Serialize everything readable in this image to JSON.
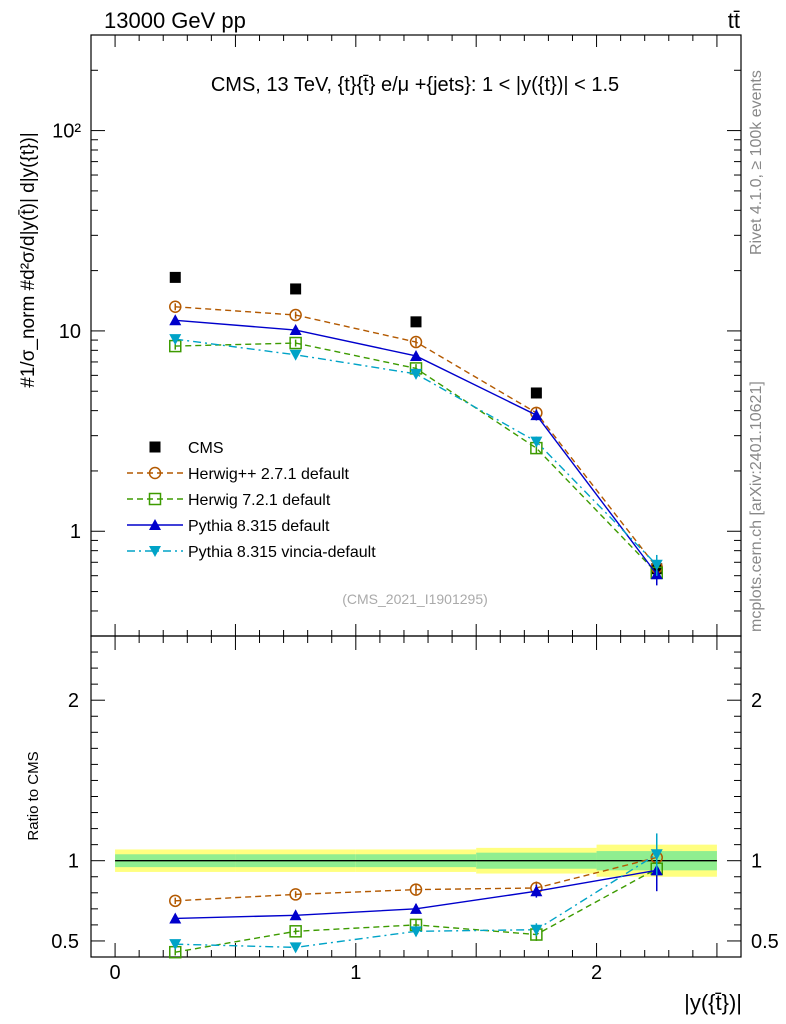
{
  "header": {
    "left_label": "13000 GeV pp",
    "right_label": "tt̄"
  },
  "side_labels": {
    "rivet": "Rivet 4.1.0, ≥ 100k events",
    "site": "mcplots.cern.ch [arXiv:2401.10621]"
  },
  "chart_data": [
    {
      "type": "line",
      "panel": "main",
      "title": "CMS, 13 TeV, {t}{t̄} e/μ +{jets}: 1 < |y({t})| < 1.5",
      "ylabel": "#1/σ_norm #d²σ/d|y(t̄)| d|y({t})|",
      "xlabel": "|y({t̄})|",
      "yscale": "log",
      "ylim": [
        0.3,
        300
      ],
      "xlim": [
        -0.1,
        2.6
      ],
      "yticks": [
        1,
        10,
        100
      ],
      "ytick_labels": [
        "1",
        "10",
        "10²"
      ],
      "watermark": "(CMS_2021_I1901295)",
      "legend_position": "lower-left",
      "x": [
        0.25,
        0.75,
        1.25,
        1.75,
        2.25
      ],
      "series": [
        {
          "name": "CMS",
          "color": "#000000",
          "marker": "square-filled",
          "values": [
            18.5,
            16.2,
            11.1,
            4.9,
            0.65
          ]
        },
        {
          "name": "Herwig++ 2.7.1 default",
          "color": "#b35900",
          "marker": "circle-open",
          "dash": "dashed",
          "values": [
            13.2,
            12.0,
            8.8,
            3.9,
            0.66
          ]
        },
        {
          "name": "Herwig 7.2.1 default",
          "color": "#3d9b00",
          "marker": "square-open",
          "dash": "dashed",
          "values": [
            8.4,
            8.7,
            6.5,
            2.6,
            0.62
          ]
        },
        {
          "name": "Pythia 8.315 default",
          "color": "#0000cc",
          "marker": "triangle-up",
          "dash": "solid",
          "values": [
            11.3,
            10.1,
            7.5,
            3.8,
            0.61
          ]
        },
        {
          "name": "Pythia 8.315 vincia-default",
          "color": "#00a3c7",
          "marker": "triangle-down",
          "dash": "dashdot",
          "values": [
            9.1,
            7.6,
            6.1,
            2.8,
            0.68
          ]
        }
      ]
    },
    {
      "type": "line",
      "panel": "ratio",
      "ylabel": "Ratio to CMS",
      "xlabel": "|y({t̄})|",
      "ylim": [
        0.4,
        2.4
      ],
      "xlim": [
        -0.1,
        2.6
      ],
      "yticks": [
        0.5,
        1,
        2
      ],
      "ytick_labels": [
        "0.5",
        "1",
        "2"
      ],
      "xticks": [
        0,
        1,
        2
      ],
      "xtick_labels": [
        "0",
        "1",
        "2"
      ],
      "x": [
        0.25,
        0.75,
        1.25,
        1.75,
        2.25
      ],
      "bands": {
        "edges": [
          0,
          0.5,
          1,
          1.5,
          2,
          2.5
        ],
        "inner": [
          [
            0.96,
            1.04
          ],
          [
            0.96,
            1.04
          ],
          [
            0.96,
            1.04
          ],
          [
            0.95,
            1.05
          ],
          [
            0.94,
            1.06
          ]
        ],
        "outer": [
          [
            0.93,
            1.07
          ],
          [
            0.93,
            1.07
          ],
          [
            0.93,
            1.07
          ],
          [
            0.92,
            1.08
          ],
          [
            0.9,
            1.1
          ]
        ],
        "inner_color": "#90ee90",
        "outer_color": "#ffff80"
      },
      "series": [
        {
          "name": "Herwig++ 2.7.1 default",
          "color": "#b35900",
          "marker": "circle-open",
          "dash": "dashed",
          "values": [
            0.75,
            0.79,
            0.82,
            0.83,
            1.02
          ]
        },
        {
          "name": "Herwig 7.2.1 default",
          "color": "#3d9b00",
          "marker": "square-open",
          "dash": "dashed",
          "values": [
            0.43,
            0.56,
            0.6,
            0.54,
            0.95
          ]
        },
        {
          "name": "Pythia 8.315 default",
          "color": "#0000cc",
          "marker": "triangle-up",
          "dash": "solid",
          "values": [
            0.64,
            0.66,
            0.7,
            0.81,
            0.94
          ]
        },
        {
          "name": "Pythia 8.315 vincia-default",
          "color": "#00a3c7",
          "marker": "triangle-down",
          "dash": "dashdot",
          "values": [
            0.48,
            0.46,
            0.56,
            0.57,
            1.04
          ]
        }
      ]
    }
  ]
}
